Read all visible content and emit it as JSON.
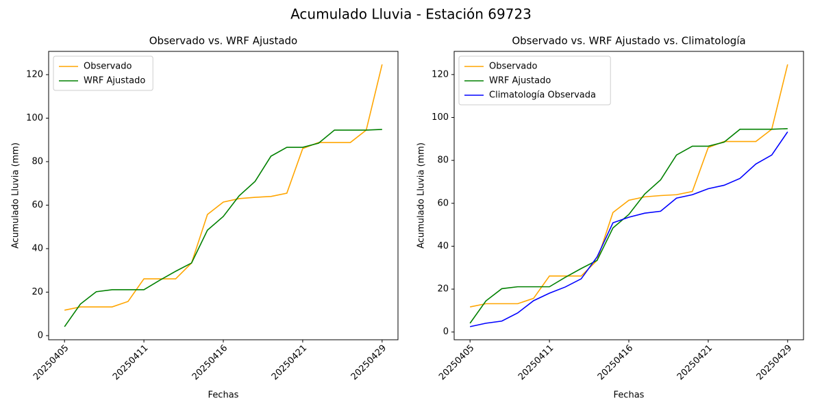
{
  "title": "Acumulado Lluvia - Estación 69723",
  "chart_data": [
    {
      "type": "line",
      "title": "Observado vs. WRF Ajustado",
      "x_label": "Fechas",
      "y_label": "Acumulado Lluvia (mm)",
      "categories": [
        "20250405",
        null,
        null,
        null,
        null,
        "20250411",
        null,
        null,
        null,
        null,
        "20250416",
        null,
        null,
        null,
        null,
        "20250421",
        null,
        null,
        null,
        null,
        "20250429"
      ],
      "ylim": [
        -1.9,
        130.7
      ],
      "yticks": [
        0,
        20,
        40,
        60,
        80,
        100,
        120
      ],
      "grid": false,
      "legend": "upper left",
      "series": [
        {
          "name": "Observado",
          "color": "#ffa500",
          "values": [
            11.7,
            13.2,
            13.2,
            13.2,
            15.7,
            26.1,
            26.1,
            26.1,
            33.4,
            55.7,
            61.4,
            63.0,
            63.6,
            64.0,
            65.5,
            86.0,
            88.8,
            88.8,
            88.8,
            94.5,
            124.7
          ]
        },
        {
          "name": "WRF Ajustado",
          "color": "#008000",
          "values": [
            4.1,
            14.5,
            20.2,
            21.1,
            21.1,
            21.1,
            25.5,
            29.6,
            33.4,
            48.5,
            54.8,
            64.3,
            70.9,
            82.5,
            86.6,
            86.6,
            88.5,
            94.5,
            94.5,
            94.5,
            94.8
          ]
        }
      ]
    },
    {
      "type": "line",
      "title": "Observado vs. WRF Ajustado vs. Climatología",
      "x_label": "Fechas",
      "y_label": "Acumulado Lluvia (mm)",
      "categories": [
        "20250405",
        null,
        null,
        null,
        null,
        "20250411",
        null,
        null,
        null,
        null,
        "20250416",
        null,
        null,
        null,
        null,
        "20250421",
        null,
        null,
        null,
        null,
        "20250429"
      ],
      "ylim": [
        -3.6,
        130.8
      ],
      "yticks": [
        0,
        20,
        40,
        60,
        80,
        100,
        120
      ],
      "grid": false,
      "legend": "upper left",
      "series": [
        {
          "name": "Observado",
          "color": "#ffa500",
          "values": [
            11.7,
            13.2,
            13.2,
            13.2,
            15.7,
            26.1,
            26.1,
            26.1,
            33.4,
            55.7,
            61.4,
            63.0,
            63.6,
            64.0,
            65.5,
            86.0,
            88.8,
            88.8,
            88.8,
            94.5,
            124.7
          ]
        },
        {
          "name": "WRF Ajustado",
          "color": "#008000",
          "values": [
            4.1,
            14.5,
            20.2,
            21.1,
            21.1,
            21.1,
            25.5,
            29.6,
            33.4,
            48.5,
            54.8,
            64.3,
            70.9,
            82.5,
            86.6,
            86.6,
            88.5,
            94.5,
            94.5,
            94.5,
            94.8
          ]
        },
        {
          "name": "Climatología Observada",
          "color": "#0000ff",
          "values": [
            2.5,
            4.1,
            5.1,
            8.9,
            14.6,
            18.1,
            21.0,
            24.8,
            35.0,
            50.9,
            53.5,
            55.4,
            56.3,
            62.4,
            64.0,
            66.8,
            68.4,
            71.6,
            78.3,
            82.5,
            93.3
          ]
        }
      ]
    }
  ]
}
